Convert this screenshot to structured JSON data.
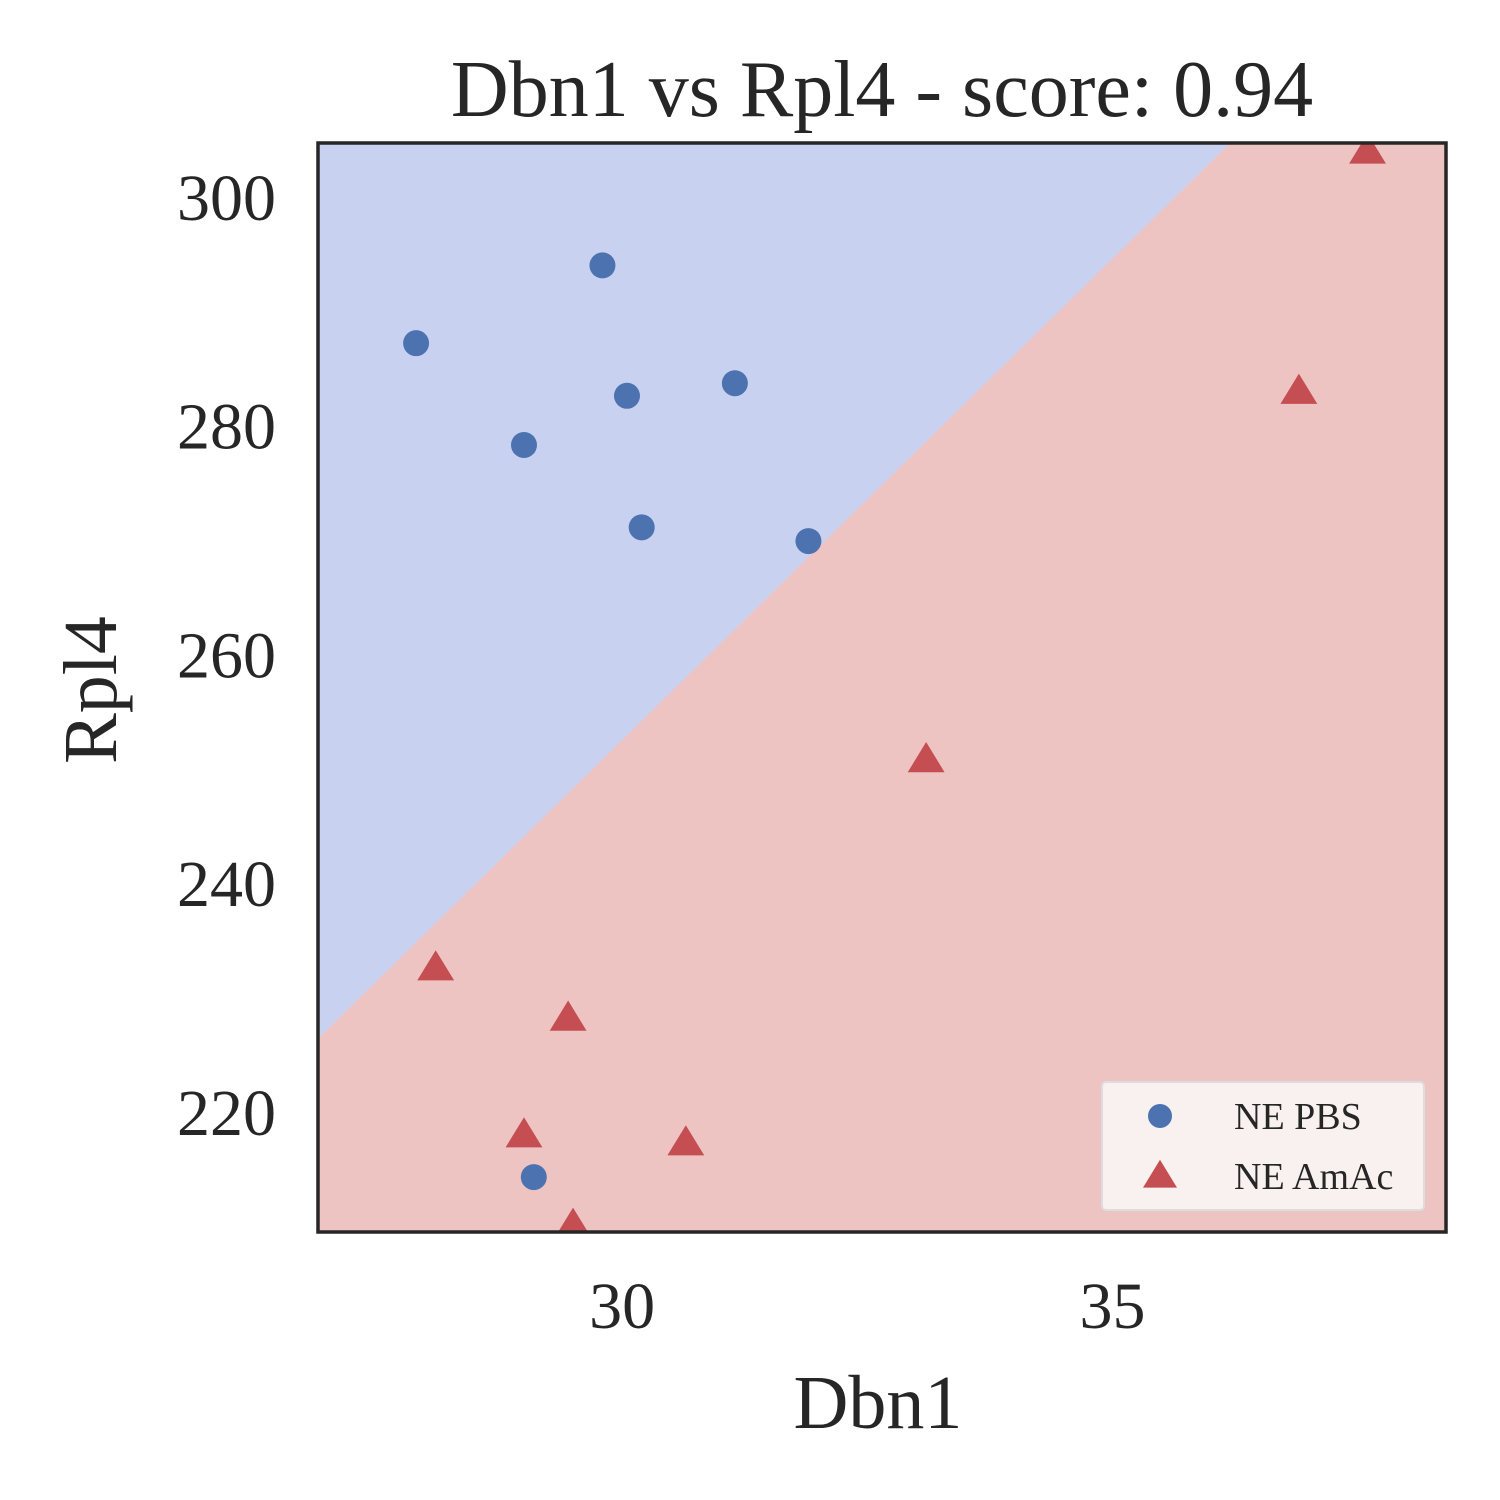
{
  "chart_data": {
    "type": "scatter",
    "title": "Dbn1 vs Rpl4 - score: 0.94",
    "xlabel": "Dbn1",
    "ylabel": "Rpl4",
    "xlim": [
      26.9,
      38.4
    ],
    "ylim": [
      209.5,
      304.7
    ],
    "xticks": [
      30,
      35
    ],
    "xtick_labels": [
      "30",
      "35"
    ],
    "yticks": [
      220,
      240,
      260,
      280,
      300
    ],
    "ytick_labels": [
      "220",
      "240",
      "260",
      "280",
      "300"
    ],
    "grid": false,
    "legend_position": "bottom-right",
    "decision_boundary": {
      "points": [
        [
          26.9,
          226.4
        ],
        [
          36.2,
          304.7
        ]
      ],
      "region_above_color": "#c9d1f1",
      "region_below_color": "#eec4c3"
    },
    "series": [
      {
        "name": "NE PBS",
        "marker": "circle",
        "color": "#4c72b0",
        "points": [
          [
            27.9,
            287.2
          ],
          [
            29.8,
            294.0
          ],
          [
            30.05,
            282.6
          ],
          [
            31.15,
            283.7
          ],
          [
            29.0,
            278.3
          ],
          [
            30.2,
            271.1
          ],
          [
            31.9,
            269.9
          ],
          [
            29.1,
            214.3
          ]
        ]
      },
      {
        "name": "NE AmAc",
        "marker": "triangle",
        "color": "#c44e52",
        "points": [
          [
            37.6,
            304.0
          ],
          [
            36.9,
            283.0
          ],
          [
            33.1,
            250.8
          ],
          [
            28.1,
            232.6
          ],
          [
            29.45,
            228.2
          ],
          [
            29.0,
            218.0
          ],
          [
            30.65,
            217.3
          ],
          [
            29.5,
            210.1
          ]
        ]
      }
    ]
  }
}
